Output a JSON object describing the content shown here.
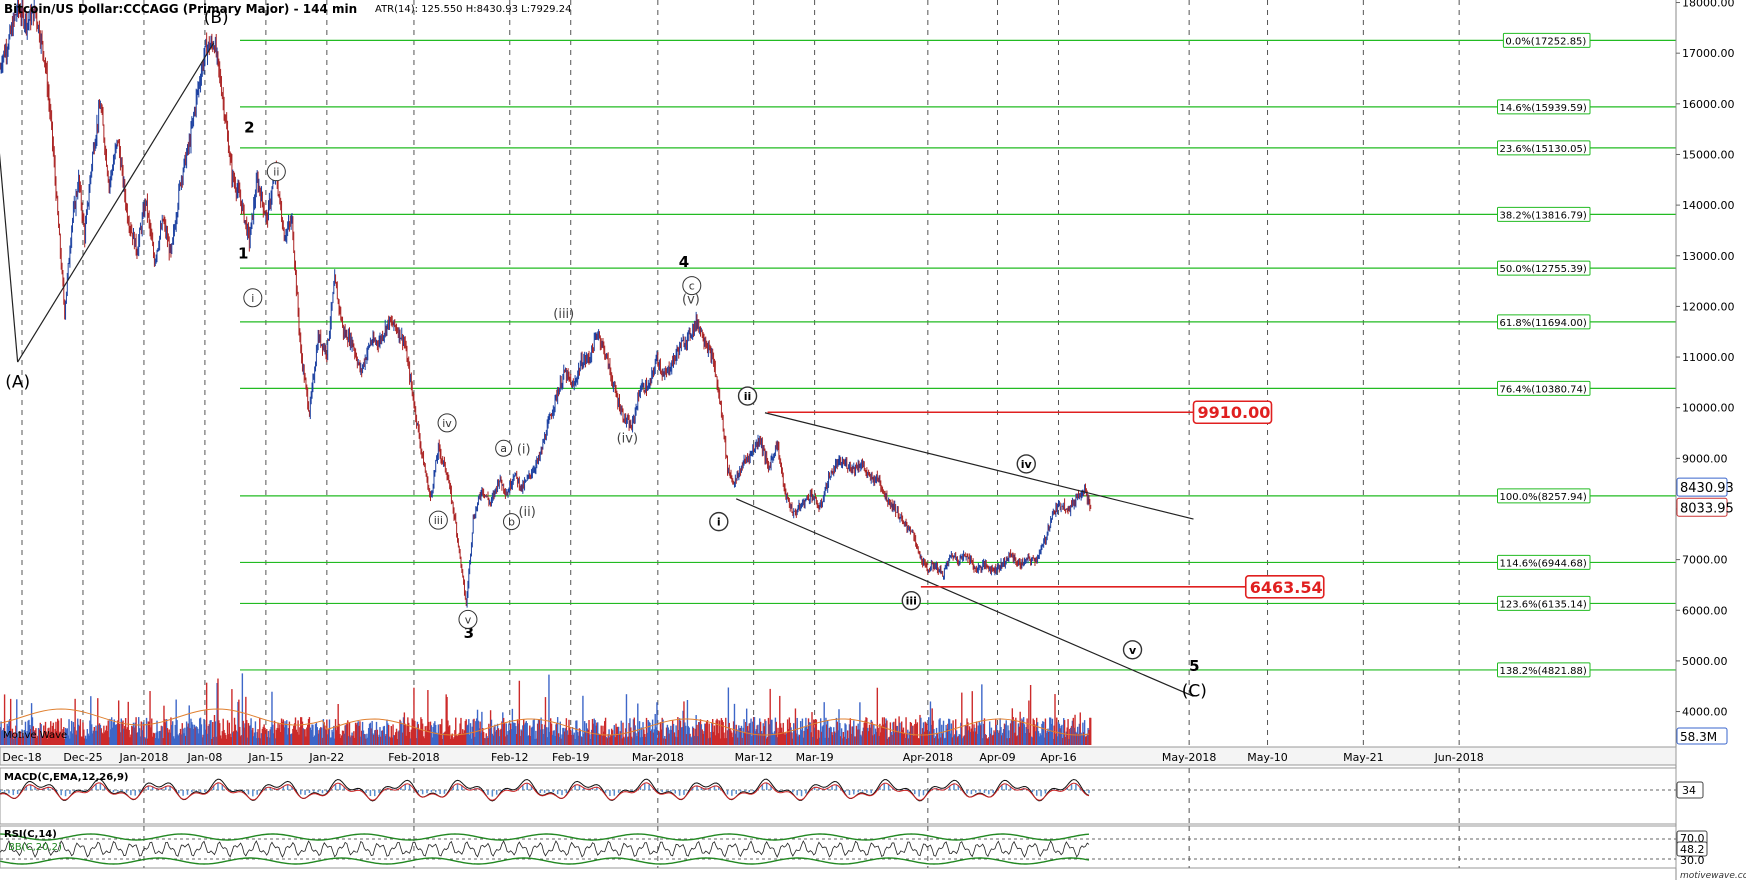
{
  "header": {
    "title": "Bitcoin/US Dollar:CCCAGG (Primary Major) - 144 min",
    "stats": "ATR(14): 125.550  H:8430.93  L:7929.24"
  },
  "watermark": "motivewave.com",
  "volume_label": "Motive Wave",
  "chart_data": {
    "type": "candlestick",
    "title": "Bitcoin/US Dollar:CCCAGG (Primary Major) - 144 min",
    "price_axis": {
      "range": [
        3300,
        18050
      ],
      "ticks": [
        "18000.00",
        "17000.00",
        "16000.00",
        "15000.00",
        "14000.00",
        "13000.00",
        "12000.00",
        "11000.00",
        "10000.00",
        "9000.00",
        "8000.00",
        "7000.00",
        "6000.00",
        "5000.00",
        "4000.00"
      ],
      "current_price": "8033.95",
      "high_label": "8430.93",
      "volume_label": "58.3M"
    },
    "x_axis": {
      "labels": [
        {
          "label": "Dec-18",
          "day": 0
        },
        {
          "label": "Dec-25",
          "day": 7
        },
        {
          "label": "Jan-2018",
          "day": 14
        },
        {
          "label": "Jan-08",
          "day": 21
        },
        {
          "label": "Jan-15",
          "day": 28
        },
        {
          "label": "Jan-22",
          "day": 35
        },
        {
          "label": "Feb-2018",
          "day": 45
        },
        {
          "label": "Feb-12",
          "day": 56
        },
        {
          "label": "Feb-19",
          "day": 63
        },
        {
          "label": "Mar-2018",
          "day": 73
        },
        {
          "label": "Mar-12",
          "day": 84
        },
        {
          "label": "Mar-19",
          "day": 91
        },
        {
          "label": "Apr-2018",
          "day": 104
        },
        {
          "label": "Apr-09",
          "day": 112
        },
        {
          "label": "Apr-16",
          "day": 119
        },
        {
          "label": "May-2018",
          "day": 134
        },
        {
          "label": "May-10",
          "day": 143
        },
        {
          "label": "May-21",
          "day": 154
        },
        {
          "label": "Jun-2018",
          "day": 165
        }
      ],
      "month_lines": [
        14,
        45,
        73,
        104,
        134,
        165
      ]
    },
    "price_anchors": [
      [
        -3.0,
        16200
      ],
      [
        -2.3,
        16900
      ],
      [
        -1.6,
        17200
      ],
      [
        -0.5,
        17900
      ],
      [
        0.6,
        17600
      ],
      [
        1.5,
        17850
      ],
      [
        2.6,
        16900
      ],
      [
        3.4,
        15500
      ],
      [
        4.3,
        13300
      ],
      [
        4.9,
        11900
      ],
      [
        5.7,
        13600
      ],
      [
        6.5,
        14500
      ],
      [
        7.2,
        13400
      ],
      [
        8.1,
        15000
      ],
      [
        9.0,
        16000
      ],
      [
        10.0,
        14400
      ],
      [
        11.0,
        15300
      ],
      [
        12.1,
        13800
      ],
      [
        13.2,
        13100
      ],
      [
        14.2,
        14100
      ],
      [
        15.2,
        12900
      ],
      [
        16.2,
        13700
      ],
      [
        17.1,
        13000
      ],
      [
        18.2,
        14500
      ],
      [
        19.2,
        15200
      ],
      [
        20.1,
        16200
      ],
      [
        21.1,
        17100
      ],
      [
        22.1,
        17200
      ],
      [
        23.0,
        16200
      ],
      [
        24.1,
        14600
      ],
      [
        25.1,
        14100
      ],
      [
        26.1,
        13300
      ],
      [
        27.0,
        14500
      ],
      [
        28.1,
        13700
      ],
      [
        29.1,
        14700
      ],
      [
        30.1,
        13400
      ],
      [
        31.0,
        13700
      ],
      [
        32.0,
        11100
      ],
      [
        33.0,
        9900
      ],
      [
        34.0,
        11400
      ],
      [
        35.0,
        11100
      ],
      [
        35.9,
        12500
      ],
      [
        36.9,
        11500
      ],
      [
        37.9,
        11300
      ],
      [
        38.9,
        10700
      ],
      [
        40.0,
        11300
      ],
      [
        41.0,
        11300
      ],
      [
        42.1,
        11700
      ],
      [
        42.9,
        11600
      ],
      [
        43.9,
        11300
      ],
      [
        44.9,
        10200
      ],
      [
        45.9,
        9100
      ],
      [
        46.9,
        8200
      ],
      [
        47.8,
        9200
      ],
      [
        48.8,
        8700
      ],
      [
        49.8,
        7700
      ],
      [
        50.7,
        6500
      ],
      [
        51.0,
        6100
      ],
      [
        51.8,
        7800
      ],
      [
        52.8,
        8400
      ],
      [
        53.8,
        8100
      ],
      [
        54.8,
        8600
      ],
      [
        55.7,
        8300
      ],
      [
        56.5,
        8700
      ],
      [
        57.4,
        8400
      ],
      [
        58.4,
        8700
      ],
      [
        59.4,
        9000
      ],
      [
        60.3,
        9600
      ],
      [
        61.3,
        10200
      ],
      [
        62.3,
        10700
      ],
      [
        63.3,
        10400
      ],
      [
        64.2,
        10900
      ],
      [
        65.2,
        11000
      ],
      [
        66.1,
        11500
      ],
      [
        67.1,
        11000
      ],
      [
        68.1,
        10300
      ],
      [
        69.1,
        9800
      ],
      [
        70.0,
        9600
      ],
      [
        71.0,
        10400
      ],
      [
        72.0,
        10400
      ],
      [
        72.9,
        11000
      ],
      [
        73.7,
        10600
      ],
      [
        74.7,
        10900
      ],
      [
        75.5,
        11200
      ],
      [
        76.5,
        11400
      ],
      [
        77.5,
        11700
      ],
      [
        78.5,
        11300
      ],
      [
        79.4,
        10900
      ],
      [
        80.4,
        9800
      ],
      [
        81.0,
        8800
      ],
      [
        81.8,
        8500
      ],
      [
        82.8,
        8900
      ],
      [
        83.7,
        9100
      ],
      [
        84.7,
        9400
      ],
      [
        85.7,
        8800
      ],
      [
        86.7,
        9300
      ],
      [
        87.6,
        8300
      ],
      [
        88.6,
        7900
      ],
      [
        89.6,
        8100
      ],
      [
        90.6,
        8300
      ],
      [
        91.6,
        8000
      ],
      [
        92.6,
        8600
      ],
      [
        93.6,
        8900
      ],
      [
        94.5,
        8900
      ],
      [
        95.5,
        8800
      ],
      [
        96.4,
        8900
      ],
      [
        97.3,
        8600
      ],
      [
        98.3,
        8600
      ],
      [
        99.3,
        8200
      ],
      [
        100.3,
        8000
      ],
      [
        101.2,
        7700
      ],
      [
        102.1,
        7600
      ],
      [
        103.0,
        7100
      ],
      [
        103.9,
        6800
      ],
      [
        104.8,
        6900
      ],
      [
        105.7,
        6700
      ],
      [
        106.7,
        7100
      ],
      [
        107.5,
        7000
      ],
      [
        108.5,
        7100
      ],
      [
        109.5,
        6800
      ],
      [
        110.5,
        6900
      ],
      [
        111.5,
        6800
      ],
      [
        112.5,
        6900
      ],
      [
        113.5,
        7100
      ],
      [
        114.5,
        6900
      ],
      [
        115.5,
        7000
      ],
      [
        116.4,
        7000
      ],
      [
        117.3,
        7300
      ],
      [
        118.3,
        7900
      ],
      [
        119.3,
        8100
      ],
      [
        120.3,
        8000
      ],
      [
        121.3,
        8300
      ],
      [
        122.0,
        8400
      ],
      [
        122.7,
        8000
      ]
    ],
    "fib_levels": [
      {
        "label": "0.0%(17252.85)",
        "price": 17252.85
      },
      {
        "label": "14.6%(15939.59)",
        "price": 15939.59
      },
      {
        "label": "23.6%(15130.05)",
        "price": 15130.05
      },
      {
        "label": "38.2%(13816.79)",
        "price": 13816.79
      },
      {
        "label": "50.0%(12755.39)",
        "price": 12755.39
      },
      {
        "label": "61.8%(11694.00)",
        "price": 11694.0
      },
      {
        "label": "76.4%(10380.74)",
        "price": 10380.74
      },
      {
        "label": "100.0%(8257.94)",
        "price": 8257.94
      },
      {
        "label": "114.6%(6944.68)",
        "price": 6944.68
      },
      {
        "label": "123.6%(6135.14)",
        "price": 6135.14
      },
      {
        "label": "138.2%(4821.88)",
        "price": 4821.88
      }
    ],
    "targets": [
      {
        "label": "9910.00",
        "price": 9910.0,
        "day_start": 85.6,
        "day_end": 134.5
      },
      {
        "label": "6463.54",
        "price": 6463.54,
        "day_start": 103.2,
        "day_end": 140.5
      }
    ],
    "trendlines": [
      {
        "from": [
          -0.5,
          10900
        ],
        "to": [
          22.0,
          17200
        ]
      },
      {
        "from": [
          -0.5,
          10900
        ],
        "to": [
          -4.0,
          17800
        ]
      },
      {
        "from": [
          85.3,
          9900
        ],
        "to": [
          134.5,
          7800
        ]
      },
      {
        "from": [
          82.0,
          8200
        ],
        "to": [
          134.5,
          4300
        ]
      }
    ],
    "wave_labels": [
      {
        "text": "(A)",
        "day": -0.5,
        "price": 10400,
        "style": "plain",
        "size": 17
      },
      {
        "text": "(B)",
        "day": 22.3,
        "price": 17600,
        "style": "plain",
        "size": 17
      },
      {
        "text": "(C)",
        "day": 134.6,
        "price": 4300,
        "style": "plain",
        "size": 17
      },
      {
        "text": "2",
        "day": 26.1,
        "price": 15430,
        "style": "plain",
        "size": 15,
        "bold": true
      },
      {
        "text": "1",
        "day": 25.4,
        "price": 12950,
        "style": "plain",
        "size": 15,
        "bold": true
      },
      {
        "text": "3",
        "day": 51.3,
        "price": 5450,
        "style": "plain",
        "size": 15,
        "bold": true
      },
      {
        "text": "4",
        "day": 76.0,
        "price": 12780,
        "style": "plain",
        "size": 15,
        "bold": true
      },
      {
        "text": "5",
        "day": 134.6,
        "price": 4800,
        "style": "plain",
        "size": 15,
        "bold": true
      },
      {
        "text": "ii",
        "day": 29.2,
        "price": 14660,
        "style": "circle",
        "r": 9
      },
      {
        "text": "i",
        "day": 26.5,
        "price": 12170,
        "style": "circle",
        "r": 9
      },
      {
        "text": "iv",
        "day": 48.8,
        "price": 9700,
        "style": "circle",
        "r": 9
      },
      {
        "text": "iii",
        "day": 47.8,
        "price": 7780,
        "style": "circle",
        "r": 9
      },
      {
        "text": "v",
        "day": 51.2,
        "price": 5820,
        "style": "circle",
        "r": 9
      },
      {
        "text": "a",
        "day": 55.3,
        "price": 9200,
        "style": "circle",
        "r": 8
      },
      {
        "text": "b",
        "day": 56.2,
        "price": 7750,
        "style": "circle",
        "r": 8
      },
      {
        "text": "(i)",
        "day": 57.6,
        "price": 9100,
        "style": "plain",
        "size": 13
      },
      {
        "text": "(ii)",
        "day": 58.0,
        "price": 7860,
        "style": "plain",
        "size": 13
      },
      {
        "text": "(iii)",
        "day": 62.2,
        "price": 11770,
        "style": "plain",
        "size": 13
      },
      {
        "text": "(iv)",
        "day": 69.5,
        "price": 9310,
        "style": "plain",
        "size": 13
      },
      {
        "text": "c",
        "day": 76.9,
        "price": 12410,
        "style": "circle",
        "r": 9
      },
      {
        "text": "(v)",
        "day": 76.8,
        "price": 12060,
        "style": "plain",
        "size": 13
      },
      {
        "text": "ii",
        "day": 83.3,
        "price": 10230,
        "style": "circle",
        "r": 9,
        "bold": true
      },
      {
        "text": "i",
        "day": 80.0,
        "price": 7750,
        "style": "circle",
        "r": 9,
        "bold": true
      },
      {
        "text": "iii",
        "day": 102.1,
        "price": 6190,
        "style": "circle",
        "r": 9,
        "bold": true
      },
      {
        "text": "iv",
        "day": 115.3,
        "price": 8890,
        "style": "circle",
        "r": 9,
        "bold": true
      },
      {
        "text": "v",
        "day": 127.5,
        "price": 5220,
        "style": "circle",
        "r": 9,
        "bold": true
      }
    ],
    "macd": {
      "title": "MACD(C,EMA,12,26,9)",
      "value": "34"
    },
    "rsi": {
      "title": "RSI(C,14)",
      "sublabel": "BB(C,20,2)",
      "value_high": "70.0",
      "value_mid": "48.2",
      "value_low": "30.0"
    }
  }
}
